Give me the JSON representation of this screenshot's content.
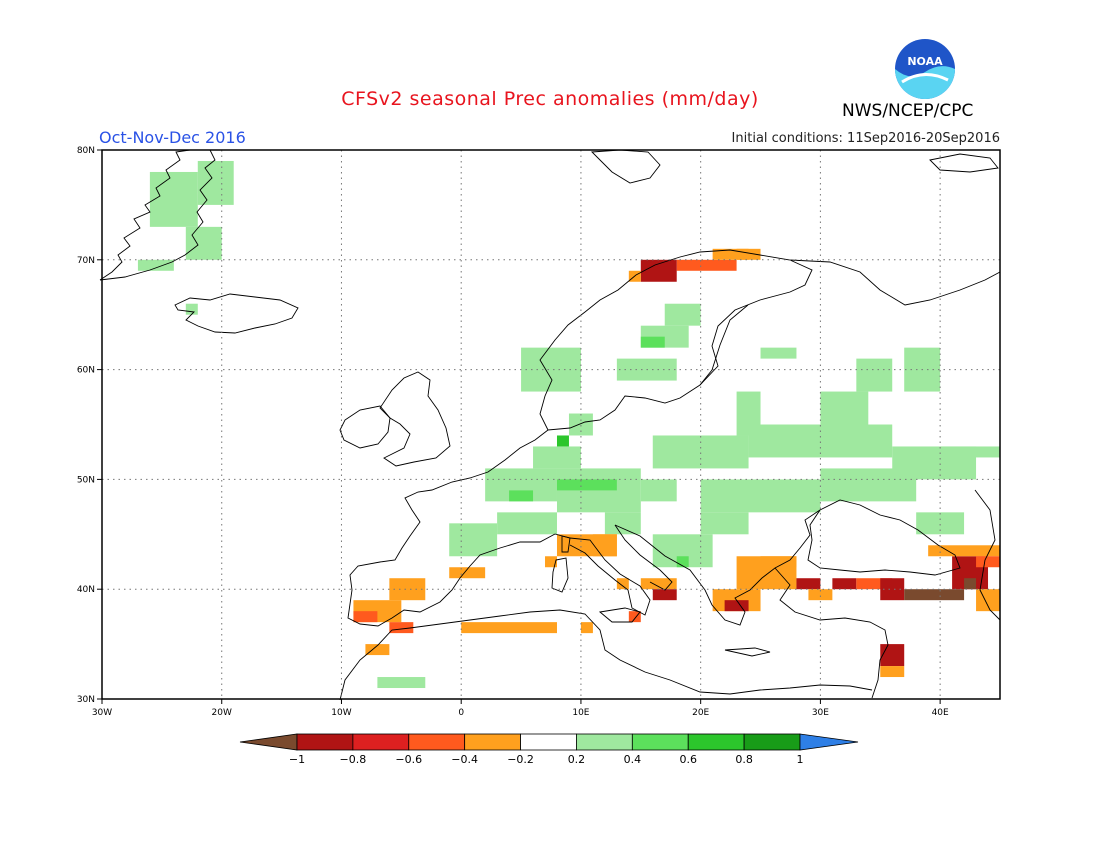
{
  "header": {
    "title": "CFSv2 seasonal Prec anomalies (mm/day)",
    "period": "Oct-Nov-Dec 2016",
    "initial_conditions": "Initial conditions: 11Sep2016-20Sep2016",
    "agency": "NWS/NCEP/CPC",
    "logo_text": "NOAA"
  },
  "map": {
    "lon_range": [
      -30,
      45
    ],
    "lat_range": [
      30,
      80
    ],
    "lon_ticks": [
      {
        "value": -30,
        "label": "30W"
      },
      {
        "value": -20,
        "label": "20W"
      },
      {
        "value": -10,
        "label": "10W"
      },
      {
        "value": 0,
        "label": "0"
      },
      {
        "value": 10,
        "label": "10E"
      },
      {
        "value": 20,
        "label": "20E"
      },
      {
        "value": 30,
        "label": "30E"
      },
      {
        "value": 40,
        "label": "40E"
      }
    ],
    "lat_ticks": [
      {
        "value": 30,
        "label": "30N"
      },
      {
        "value": 40,
        "label": "40N"
      },
      {
        "value": 50,
        "label": "50N"
      },
      {
        "value": 60,
        "label": "60N"
      },
      {
        "value": 70,
        "label": "70N"
      },
      {
        "value": 80,
        "label": "80N"
      }
    ],
    "grid": true,
    "anomaly_cells": [
      {
        "lon": -26,
        "lat": 73,
        "w": 4,
        "h": 5,
        "value": 0.3
      },
      {
        "lon": -22,
        "lat": 75,
        "w": 3,
        "h": 4,
        "value": 0.3
      },
      {
        "lon": -23,
        "lat": 70,
        "w": 3,
        "h": 3,
        "value": 0.3
      },
      {
        "lon": -27,
        "lat": 69,
        "w": 3,
        "h": 1,
        "value": 0.3
      },
      {
        "lon": -23,
        "lat": 65,
        "w": 1,
        "h": 1,
        "value": 0.3
      },
      {
        "lon": 5,
        "lat": 58,
        "w": 5,
        "h": 4,
        "value": 0.3
      },
      {
        "lon": 13,
        "lat": 59,
        "w": 5,
        "h": 2,
        "value": 0.3
      },
      {
        "lon": 15,
        "lat": 62,
        "w": 4,
        "h": 2,
        "value": 0.3
      },
      {
        "lon": 17,
        "lat": 64,
        "w": 3,
        "h": 2,
        "value": 0.3
      },
      {
        "lon": 15,
        "lat": 62,
        "w": 2,
        "h": 1,
        "value": 0.5
      },
      {
        "lon": 25,
        "lat": 61,
        "w": 3,
        "h": 1,
        "value": 0.3
      },
      {
        "lon": 33,
        "lat": 58,
        "w": 3,
        "h": 3,
        "value": 0.3
      },
      {
        "lon": 37,
        "lat": 58,
        "w": 3,
        "h": 4,
        "value": 0.3
      },
      {
        "lon": 30,
        "lat": 55,
        "w": 4,
        "h": 3,
        "value": 0.3
      },
      {
        "lon": 23,
        "lat": 54,
        "w": 2,
        "h": 4,
        "value": 0.3
      },
      {
        "lon": 9,
        "lat": 54,
        "w": 2,
        "h": 2,
        "value": 0.3
      },
      {
        "lon": 8,
        "lat": 53,
        "w": 1,
        "h": 1,
        "value": 0.7
      },
      {
        "lon": 6,
        "lat": 51,
        "w": 4,
        "h": 2,
        "value": 0.3
      },
      {
        "lon": 2,
        "lat": 48,
        "w": 6,
        "h": 3,
        "value": 0.3
      },
      {
        "lon": 8,
        "lat": 47,
        "w": 7,
        "h": 4,
        "value": 0.3
      },
      {
        "lon": 8,
        "lat": 49,
        "w": 5,
        "h": 1,
        "value": 0.5
      },
      {
        "lon": 4,
        "lat": 48,
        "w": 2,
        "h": 1,
        "value": 0.5
      },
      {
        "lon": 15,
        "lat": 48,
        "w": 3,
        "h": 2,
        "value": 0.3
      },
      {
        "lon": 16,
        "lat": 51,
        "w": 8,
        "h": 3,
        "value": 0.3
      },
      {
        "lon": 24,
        "lat": 52,
        "w": 12,
        "h": 3,
        "value": 0.3
      },
      {
        "lon": 30,
        "lat": 48,
        "w": 8,
        "h": 3,
        "value": 0.3
      },
      {
        "lon": 20,
        "lat": 47,
        "w": 10,
        "h": 3,
        "value": 0.3
      },
      {
        "lon": 36,
        "lat": 50,
        "w": 7,
        "h": 3,
        "value": 0.3
      },
      {
        "lon": 40,
        "lat": 52,
        "w": 5,
        "h": 1,
        "value": 0.3
      },
      {
        "lon": -1,
        "lat": 43,
        "w": 4,
        "h": 3,
        "value": 0.3
      },
      {
        "lon": 3,
        "lat": 45,
        "w": 5,
        "h": 2,
        "value": 0.3
      },
      {
        "lon": 12,
        "lat": 45,
        "w": 3,
        "h": 2,
        "value": 0.3
      },
      {
        "lon": 16,
        "lat": 42,
        "w": 5,
        "h": 3,
        "value": 0.3
      },
      {
        "lon": 18,
        "lat": 42,
        "w": 1,
        "h": 1,
        "value": 0.5
      },
      {
        "lon": 20,
        "lat": 45,
        "w": 4,
        "h": 2,
        "value": 0.3
      },
      {
        "lon": 38,
        "lat": 45,
        "w": 4,
        "h": 2,
        "value": 0.3
      },
      {
        "lon": -7,
        "lat": 31,
        "w": 4,
        "h": 1,
        "value": 0.3
      },
      {
        "lon": 8,
        "lat": 43,
        "w": 5,
        "h": 2,
        "value": -0.3
      },
      {
        "lon": 11,
        "lat": 43,
        "w": 2,
        "h": 2,
        "value": -0.3
      },
      {
        "lon": 7,
        "lat": 42,
        "w": 1,
        "h": 1,
        "value": -0.3
      },
      {
        "lon": -1,
        "lat": 41,
        "w": 3,
        "h": 1,
        "value": -0.3
      },
      {
        "lon": 13,
        "lat": 40,
        "w": 1,
        "h": 1,
        "value": -0.3
      },
      {
        "lon": 15,
        "lat": 40,
        "w": 3,
        "h": 1,
        "value": -0.3
      },
      {
        "lon": 16,
        "lat": 39,
        "w": 2,
        "h": 1,
        "value": -0.9
      },
      {
        "lon": 14,
        "lat": 37,
        "w": 1,
        "h": 1,
        "value": -0.5
      },
      {
        "lon": -9,
        "lat": 37,
        "w": 4,
        "h": 2,
        "value": -0.3
      },
      {
        "lon": -6,
        "lat": 39,
        "w": 3,
        "h": 2,
        "value": -0.3
      },
      {
        "lon": -9,
        "lat": 37,
        "w": 2,
        "h": 1,
        "value": -0.5
      },
      {
        "lon": -6,
        "lat": 36,
        "w": 2,
        "h": 1,
        "value": -0.5
      },
      {
        "lon": -8,
        "lat": 34,
        "w": 2,
        "h": 1,
        "value": -0.3
      },
      {
        "lon": 0,
        "lat": 36,
        "w": 8,
        "h": 1,
        "value": -0.3
      },
      {
        "lon": 10,
        "lat": 36,
        "w": 1,
        "h": 1,
        "value": -0.3
      },
      {
        "lon": 21,
        "lat": 38,
        "w": 4,
        "h": 2,
        "value": -0.3
      },
      {
        "lon": 22,
        "lat": 38,
        "w": 2,
        "h": 1,
        "value": -0.9
      },
      {
        "lon": 23,
        "lat": 40,
        "w": 5,
        "h": 3,
        "value": -0.3
      },
      {
        "lon": 25,
        "lat": 42,
        "w": 3,
        "h": 1,
        "value": -0.3
      },
      {
        "lon": 28,
        "lat": 40,
        "w": 2,
        "h": 1,
        "value": -0.9
      },
      {
        "lon": 29,
        "lat": 39,
        "w": 2,
        "h": 1,
        "value": -0.3
      },
      {
        "lon": 31,
        "lat": 40,
        "w": 2,
        "h": 1,
        "value": -0.9
      },
      {
        "lon": 33,
        "lat": 40,
        "w": 3,
        "h": 1,
        "value": -0.5
      },
      {
        "lon": 35,
        "lat": 39,
        "w": 2,
        "h": 2,
        "value": -0.9
      },
      {
        "lon": 37,
        "lat": 39,
        "w": 5,
        "h": 1,
        "value": -1.1
      },
      {
        "lon": 41,
        "lat": 40,
        "w": 3,
        "h": 3,
        "value": -0.9
      },
      {
        "lon": 42,
        "lat": 40,
        "w": 1,
        "h": 1,
        "value": -1.1
      },
      {
        "lon": 39,
        "lat": 43,
        "w": 6,
        "h": 1,
        "value": -0.3
      },
      {
        "lon": 43,
        "lat": 42,
        "w": 2,
        "h": 1,
        "value": -0.5
      },
      {
        "lon": 43,
        "lat": 38,
        "w": 2,
        "h": 2,
        "value": -0.3
      },
      {
        "lon": 35,
        "lat": 33,
        "w": 2,
        "h": 2,
        "value": -0.9
      },
      {
        "lon": 35,
        "lat": 32,
        "w": 2,
        "h": 1,
        "value": -0.3
      },
      {
        "lon": 18,
        "lat": 69,
        "w": 5,
        "h": 1,
        "value": -0.5
      },
      {
        "lon": 15,
        "lat": 68,
        "w": 3,
        "h": 2,
        "value": -0.9
      },
      {
        "lon": 21,
        "lat": 70,
        "w": 3,
        "h": 1,
        "value": -0.3
      },
      {
        "lon": 23,
        "lat": 70,
        "w": 2,
        "h": 1,
        "value": -0.3
      },
      {
        "lon": 14,
        "lat": 68,
        "w": 1,
        "h": 1,
        "value": -0.3
      }
    ]
  },
  "legend": {
    "bins": [
      {
        "color": "#7a4a2e"
      },
      {
        "color": "#b01414"
      },
      {
        "color": "#dd2020"
      },
      {
        "color": "#ff5a1e"
      },
      {
        "color": "#ffa01e"
      },
      {
        "color": "#ffffff"
      },
      {
        "color": "#9fe89f"
      },
      {
        "color": "#5ce05c"
      },
      {
        "color": "#2cc62c"
      },
      {
        "color": "#189c18"
      },
      {
        "color": "#2e7fe6"
      }
    ],
    "labels": [
      "-1",
      "-0.8",
      "-0.6",
      "-0.4",
      "-0.2",
      "0.2",
      "0.4",
      "0.6",
      "0.8",
      "1"
    ]
  },
  "colors": {
    "title": "#e8141e",
    "period": "#2a52e6",
    "grid": "#777777",
    "land_outline": "#000000"
  }
}
